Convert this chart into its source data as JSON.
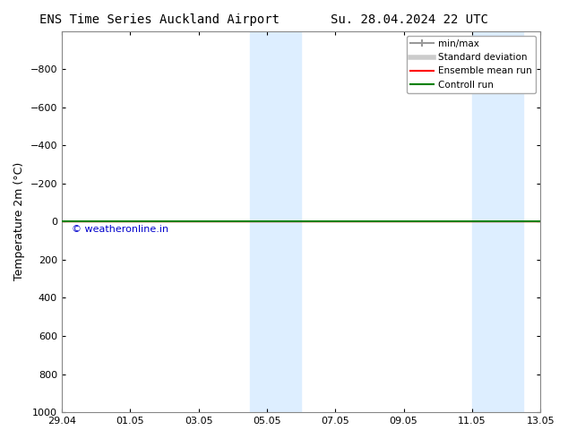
{
  "title_left": "ENS Time Series Auckland Airport",
  "title_right": "Su. 28.04.2024 22 UTC",
  "ylabel": "Temperature 2m (°C)",
  "xlim_start": "29.04",
  "xlim_end": "13.05",
  "ylim": [
    -1000,
    1000
  ],
  "yticks": [
    -800,
    -600,
    -400,
    -200,
    0,
    200,
    400,
    600,
    800,
    1000
  ],
  "xtick_labels": [
    "29.04",
    "01.05",
    "03.05",
    "05.05",
    "07.05",
    "09.05",
    "11.05",
    "13.05"
  ],
  "xtick_positions": [
    0,
    2,
    4,
    6,
    8,
    10,
    12,
    14
  ],
  "shaded_bands": [
    {
      "x_start": 5.5,
      "x_end": 7.0
    },
    {
      "x_start": 12.0,
      "x_end": 13.5
    }
  ],
  "control_run_y": 0,
  "ensemble_mean_y": 0,
  "background_color": "#ffffff",
  "shaded_color": "#ddeeff",
  "control_run_color": "#008000",
  "ensemble_mean_color": "#ff0000",
  "minmax_color": "#999999",
  "stddev_color": "#cccccc",
  "watermark_text": "© weatheronline.in",
  "watermark_color": "#0000cc",
  "legend_items": [
    {
      "label": "min/max",
      "color": "#999999",
      "lw": 1.5
    },
    {
      "label": "Standard deviation",
      "color": "#cccccc",
      "lw": 4
    },
    {
      "label": "Ensemble mean run",
      "color": "#ff0000",
      "lw": 1.5
    },
    {
      "label": "Controll run",
      "color": "#008000",
      "lw": 1.5
    }
  ]
}
